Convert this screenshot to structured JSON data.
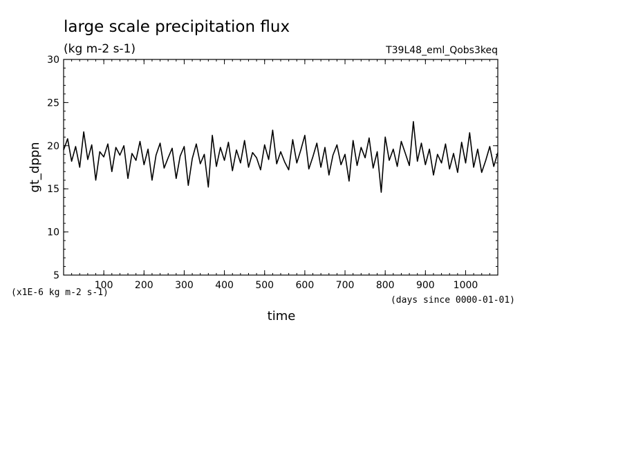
{
  "chart_data": {
    "type": "line",
    "title": "large scale precipitation flux",
    "units": "(kg m-2 s-1)",
    "experiment": "T39L48_eml_Qobs3keq",
    "ylabel": "gt_dppn",
    "yscale_note": "(x1E-6 kg m-2 s-1)",
    "xlabel": "time",
    "xunits": "(days since 0000-01-01)",
    "xlim": [
      0,
      1080
    ],
    "ylim": [
      5,
      30
    ],
    "xticks": [
      100,
      200,
      300,
      400,
      500,
      600,
      700,
      800,
      900,
      1000
    ],
    "yticks": [
      5,
      10,
      15,
      20,
      25,
      30
    ],
    "grid": false,
    "legend": "none",
    "series": [
      {
        "x": [
          0,
          10,
          20,
          30,
          40,
          50,
          60,
          70,
          80,
          90,
          100,
          110,
          120,
          130,
          140,
          150,
          160,
          170,
          180,
          190,
          200,
          210,
          220,
          230,
          240,
          250,
          260,
          270,
          280,
          290,
          300,
          310,
          320,
          330,
          340,
          350,
          360,
          370,
          380,
          390,
          400,
          410,
          420,
          430,
          440,
          450,
          460,
          470,
          480,
          490,
          500,
          510,
          520,
          530,
          540,
          550,
          560,
          570,
          580,
          590,
          600,
          610,
          620,
          630,
          640,
          650,
          660,
          670,
          680,
          690,
          700,
          710,
          720,
          730,
          740,
          750,
          760,
          770,
          780,
          790,
          800,
          810,
          820,
          830,
          840,
          850,
          860,
          870,
          880,
          890,
          900,
          910,
          920,
          930,
          940,
          950,
          960,
          970,
          980,
          990,
          1000,
          1010,
          1020,
          1030,
          1040,
          1050,
          1060,
          1070,
          1080
        ],
        "y": [
          19.5,
          20.8,
          18.2,
          19.9,
          17.5,
          21.6,
          18.4,
          20.1,
          16.0,
          19.3,
          18.7,
          20.2,
          17.0,
          19.8,
          18.9,
          20.0,
          16.2,
          19.1,
          18.3,
          20.5,
          17.8,
          19.6,
          16.0,
          18.9,
          20.3,
          17.4,
          18.6,
          19.7,
          16.2,
          18.8,
          19.9,
          15.4,
          18.5,
          20.2,
          17.9,
          19.0,
          15.2,
          21.2,
          17.6,
          19.8,
          18.3,
          20.4,
          17.1,
          19.5,
          18.0,
          20.6,
          17.5,
          19.2,
          18.6,
          17.2,
          20.1,
          18.4,
          21.8,
          17.9,
          19.3,
          18.1,
          17.2,
          20.7,
          18.0,
          19.5,
          21.2,
          17.3,
          18.7,
          20.3,
          17.5,
          19.8,
          16.6,
          18.9,
          20.1,
          17.8,
          19.0,
          15.9,
          20.6,
          17.7,
          19.8,
          18.6,
          20.9,
          17.4,
          19.3,
          14.6,
          21.0,
          18.3,
          19.6,
          17.6,
          20.5,
          19.1,
          17.7,
          22.8,
          18.2,
          20.3,
          17.8,
          19.6,
          16.6,
          19.0,
          18.0,
          20.2,
          17.3,
          19.1,
          16.9,
          20.4,
          18.0,
          21.5,
          17.5,
          19.6,
          16.9,
          18.3,
          19.9,
          17.6,
          19.2
        ]
      }
    ]
  }
}
